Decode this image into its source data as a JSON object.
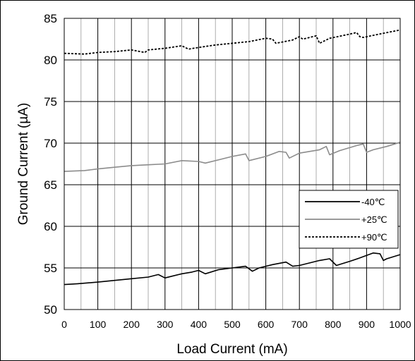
{
  "chart_data": {
    "type": "line",
    "title": "",
    "xlabel": "Load Current (mA)",
    "ylabel": "Ground Current (µA)",
    "xlim": [
      0,
      1000
    ],
    "ylim": [
      50,
      85
    ],
    "x_ticks": [
      0,
      100,
      200,
      300,
      400,
      500,
      600,
      700,
      800,
      900,
      1000
    ],
    "y_ticks": [
      50,
      55,
      60,
      65,
      70,
      75,
      80,
      85
    ],
    "grid": true,
    "legend_position": "right",
    "series": [
      {
        "name": "-40℃",
        "color": "#000000",
        "dash": "solid",
        "x": [
          0,
          40,
          100,
          150,
          200,
          250,
          280,
          300,
          320,
          350,
          380,
          400,
          420,
          460,
          500,
          520,
          540,
          560,
          580,
          620,
          660,
          680,
          700,
          760,
          790,
          810,
          850,
          880,
          900,
          920,
          940,
          950,
          960,
          1000
        ],
        "y": [
          53.0,
          53.1,
          53.3,
          53.5,
          53.7,
          53.9,
          54.2,
          53.8,
          54.0,
          54.3,
          54.5,
          54.7,
          54.3,
          54.8,
          55.0,
          55.1,
          55.2,
          54.6,
          55.0,
          55.4,
          55.7,
          55.2,
          55.3,
          55.9,
          56.1,
          55.3,
          55.8,
          56.2,
          56.5,
          56.8,
          56.7,
          55.9,
          56.1,
          56.6
        ]
      },
      {
        "name": "+25℃",
        "color": "#8c8c8c",
        "dash": "solid",
        "x": [
          0,
          60,
          100,
          150,
          200,
          250,
          300,
          350,
          400,
          420,
          460,
          500,
          540,
          550,
          600,
          640,
          660,
          670,
          700,
          760,
          780,
          790,
          820,
          870,
          890,
          900,
          920,
          960,
          1000
        ],
        "y": [
          66.6,
          66.7,
          66.9,
          67.1,
          67.3,
          67.4,
          67.5,
          67.9,
          67.8,
          67.6,
          68.0,
          68.4,
          68.7,
          67.9,
          68.4,
          69.0,
          68.9,
          68.2,
          68.8,
          69.2,
          69.6,
          68.6,
          69.1,
          69.7,
          69.9,
          68.9,
          69.2,
          69.6,
          70.1
        ]
      },
      {
        "name": "+90℃",
        "color": "#000000",
        "dash": "dashed",
        "x": [
          0,
          60,
          100,
          150,
          200,
          240,
          250,
          300,
          350,
          370,
          400,
          450,
          500,
          550,
          600,
          620,
          630,
          680,
          700,
          710,
          750,
          760,
          790,
          850,
          870,
          880,
          890,
          950,
          1000
        ],
        "y": [
          80.8,
          80.7,
          80.9,
          81.0,
          81.2,
          80.9,
          81.2,
          81.4,
          81.7,
          81.3,
          81.5,
          81.8,
          82.0,
          82.2,
          82.6,
          82.5,
          82.0,
          82.4,
          82.8,
          82.5,
          82.9,
          82.0,
          82.6,
          83.1,
          83.3,
          82.8,
          82.7,
          83.2,
          83.6
        ]
      }
    ]
  }
}
